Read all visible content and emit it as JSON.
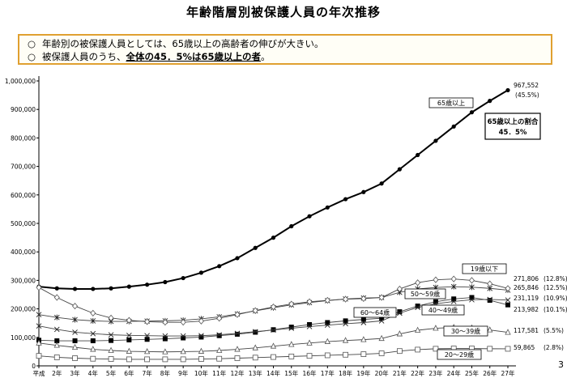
{
  "title": "年齢階層別被保護人員の年次推移",
  "notes": [
    {
      "bullet": "○",
      "text": "年齢別の被保護人員としては、65歳以上の高齢者の伸びが大きい。"
    },
    {
      "bullet": "○",
      "text_before": "被保護人員のうち、",
      "emphasis": "全体の45．5%は65歳以上の者",
      "text_after": "。"
    }
  ],
  "page_number": "3",
  "callout": {
    "line1": "65歳以上の割合",
    "line2": "45．5%"
  },
  "chart_data": {
    "type": "line",
    "x": [
      "平成",
      "2年",
      "3年",
      "4年",
      "5年",
      "6年",
      "7年",
      "8年",
      "9年",
      "10年",
      "11年",
      "12年",
      "13年",
      "14年",
      "15年",
      "16年",
      "17年",
      "18年",
      "19年",
      "20年",
      "21年",
      "22年",
      "23年",
      "24年",
      "25年",
      "26年",
      "27年"
    ],
    "y_ticks": [
      "0",
      "100,000",
      "200,000",
      "300,000",
      "400,000",
      "500,000",
      "600,000",
      "700,000",
      "800,000",
      "900,000",
      "1,000,000"
    ],
    "ylim": [
      0,
      1000000
    ],
    "series": [
      {
        "name": "65歳以上",
        "marker": "dot",
        "end_value": "967,552",
        "end_pct": "(45.5%)",
        "values": [
          278000,
          272000,
          270000,
          270000,
          272000,
          278000,
          285000,
          294000,
          308000,
          327000,
          350000,
          378000,
          414000,
          450000,
          490000,
          525000,
          556000,
          585000,
          610000,
          640000,
          690000,
          740000,
          790000,
          840000,
          890000,
          930000,
          967552
        ]
      },
      {
        "name": "60～64歳",
        "marker": "filled-square",
        "end_value": "213,982",
        "end_pct": "(10.1%)",
        "values": [
          90000,
          88000,
          88000,
          88000,
          89000,
          91000,
          93000,
          95000,
          98000,
          101000,
          106000,
          111000,
          118000,
          127000,
          136000,
          145000,
          152000,
          158000,
          163000,
          167000,
          190000,
          210000,
          225000,
          235000,
          240000,
          230000,
          213982
        ]
      },
      {
        "name": "50～59歳",
        "marker": "star",
        "end_value": "265,846",
        "end_pct": "(12.5%)",
        "values": [
          180000,
          170000,
          162000,
          158000,
          156000,
          156000,
          157000,
          158000,
          160000,
          165000,
          172000,
          182000,
          193000,
          204000,
          214000,
          222000,
          229000,
          235000,
          238000,
          240000,
          258000,
          270000,
          275000,
          278000,
          276000,
          272000,
          265846
        ]
      },
      {
        "name": "40～49歳",
        "marker": "cross",
        "end_value": "231,119",
        "end_pct": "(10.9%)",
        "values": [
          140000,
          128000,
          118000,
          113000,
          109000,
          107000,
          106000,
          105000,
          105000,
          106000,
          109000,
          114000,
          120000,
          126000,
          132000,
          138000,
          143000,
          148000,
          152000,
          158000,
          185000,
          205000,
          218000,
          226000,
          232000,
          233000,
          231119
        ]
      },
      {
        "name": "19歳以下",
        "marker": "diamond",
        "end_value": "271,806",
        "end_pct": "(12.8%)",
        "values": [
          275000,
          240000,
          210000,
          185000,
          168000,
          160000,
          155000,
          153000,
          153000,
          157000,
          167000,
          180000,
          194000,
          207000,
          217000,
          225000,
          230000,
          234000,
          236000,
          240000,
          270000,
          292000,
          302000,
          305000,
          300000,
          288000,
          271806
        ]
      },
      {
        "name": "30～39歳",
        "marker": "triangle",
        "end_value": "117,581",
        "end_pct": "(5.5%)",
        "values": [
          80000,
          72000,
          65000,
          58000,
          54000,
          51000,
          50000,
          49000,
          50000,
          51000,
          54000,
          58000,
          63000,
          69000,
          75000,
          80000,
          85000,
          89000,
          92000,
          96000,
          112000,
          125000,
          132000,
          135000,
          133000,
          126000,
          117581
        ]
      },
      {
        "name": "20～29歳",
        "marker": "open-square",
        "end_value": "59,865",
        "end_pct": "(2.8%)",
        "values": [
          35000,
          30000,
          27000,
          25000,
          24000,
          23000,
          23000,
          23000,
          23000,
          24000,
          25000,
          27000,
          29000,
          31000,
          33000,
          35000,
          37000,
          39000,
          41000,
          44000,
          52000,
          57000,
          60000,
          61000,
          61000,
          60000,
          59865
        ]
      }
    ]
  }
}
